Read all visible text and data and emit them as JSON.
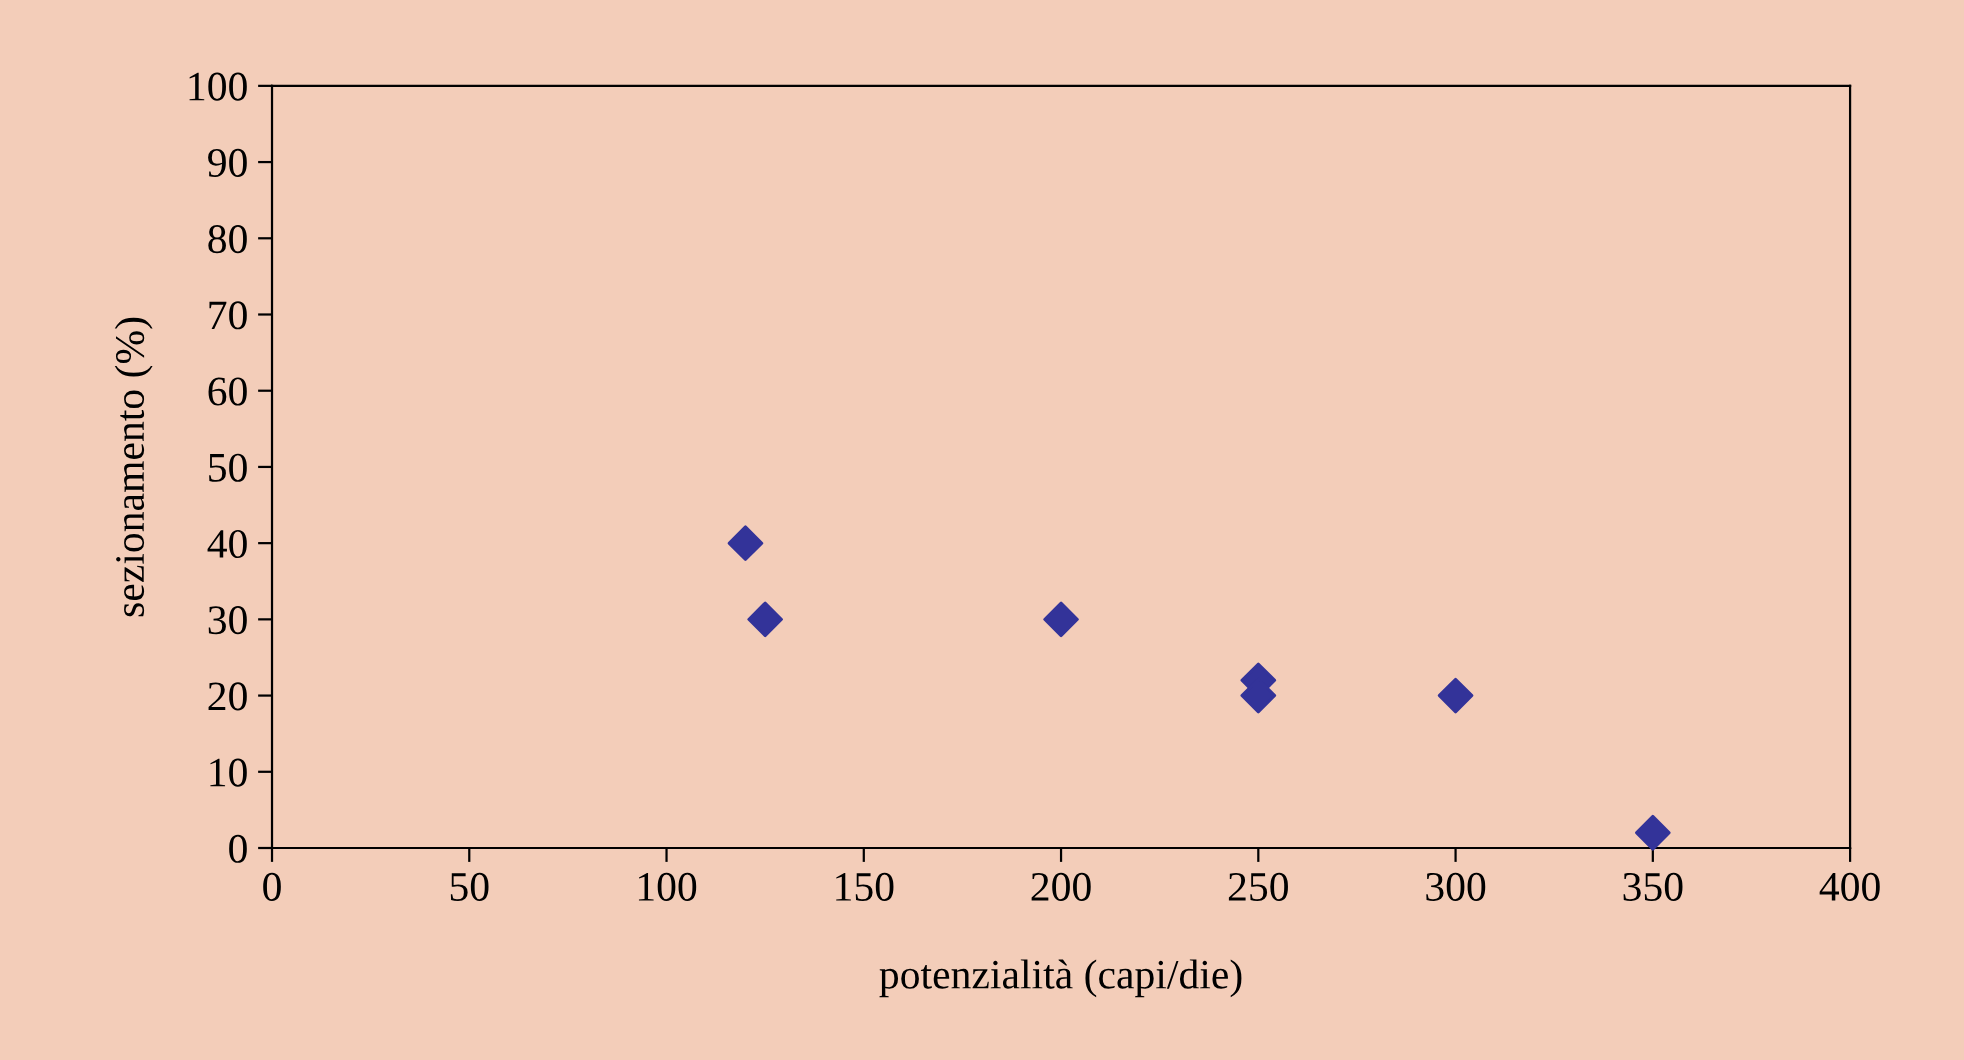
{
  "chart_data": {
    "type": "scatter",
    "xlabel": "potenzialità (capi/die)",
    "ylabel": "sezionamento (%)",
    "x": [
      120,
      125,
      200,
      250,
      250,
      300,
      350
    ],
    "series": [
      {
        "color": "#333399",
        "values": [
          40,
          30,
          30,
          22,
          20,
          20,
          2
        ]
      }
    ],
    "xlim": [
      0,
      400
    ],
    "xticks": [
      0,
      50,
      100,
      150,
      200,
      250,
      300,
      350,
      400
    ],
    "ylim": [
      0,
      100
    ],
    "yticks": [
      0,
      10,
      20,
      30,
      40,
      50,
      60,
      70,
      80,
      90,
      100
    ],
    "marker": "diamond",
    "grid": false,
    "legend": false
  }
}
